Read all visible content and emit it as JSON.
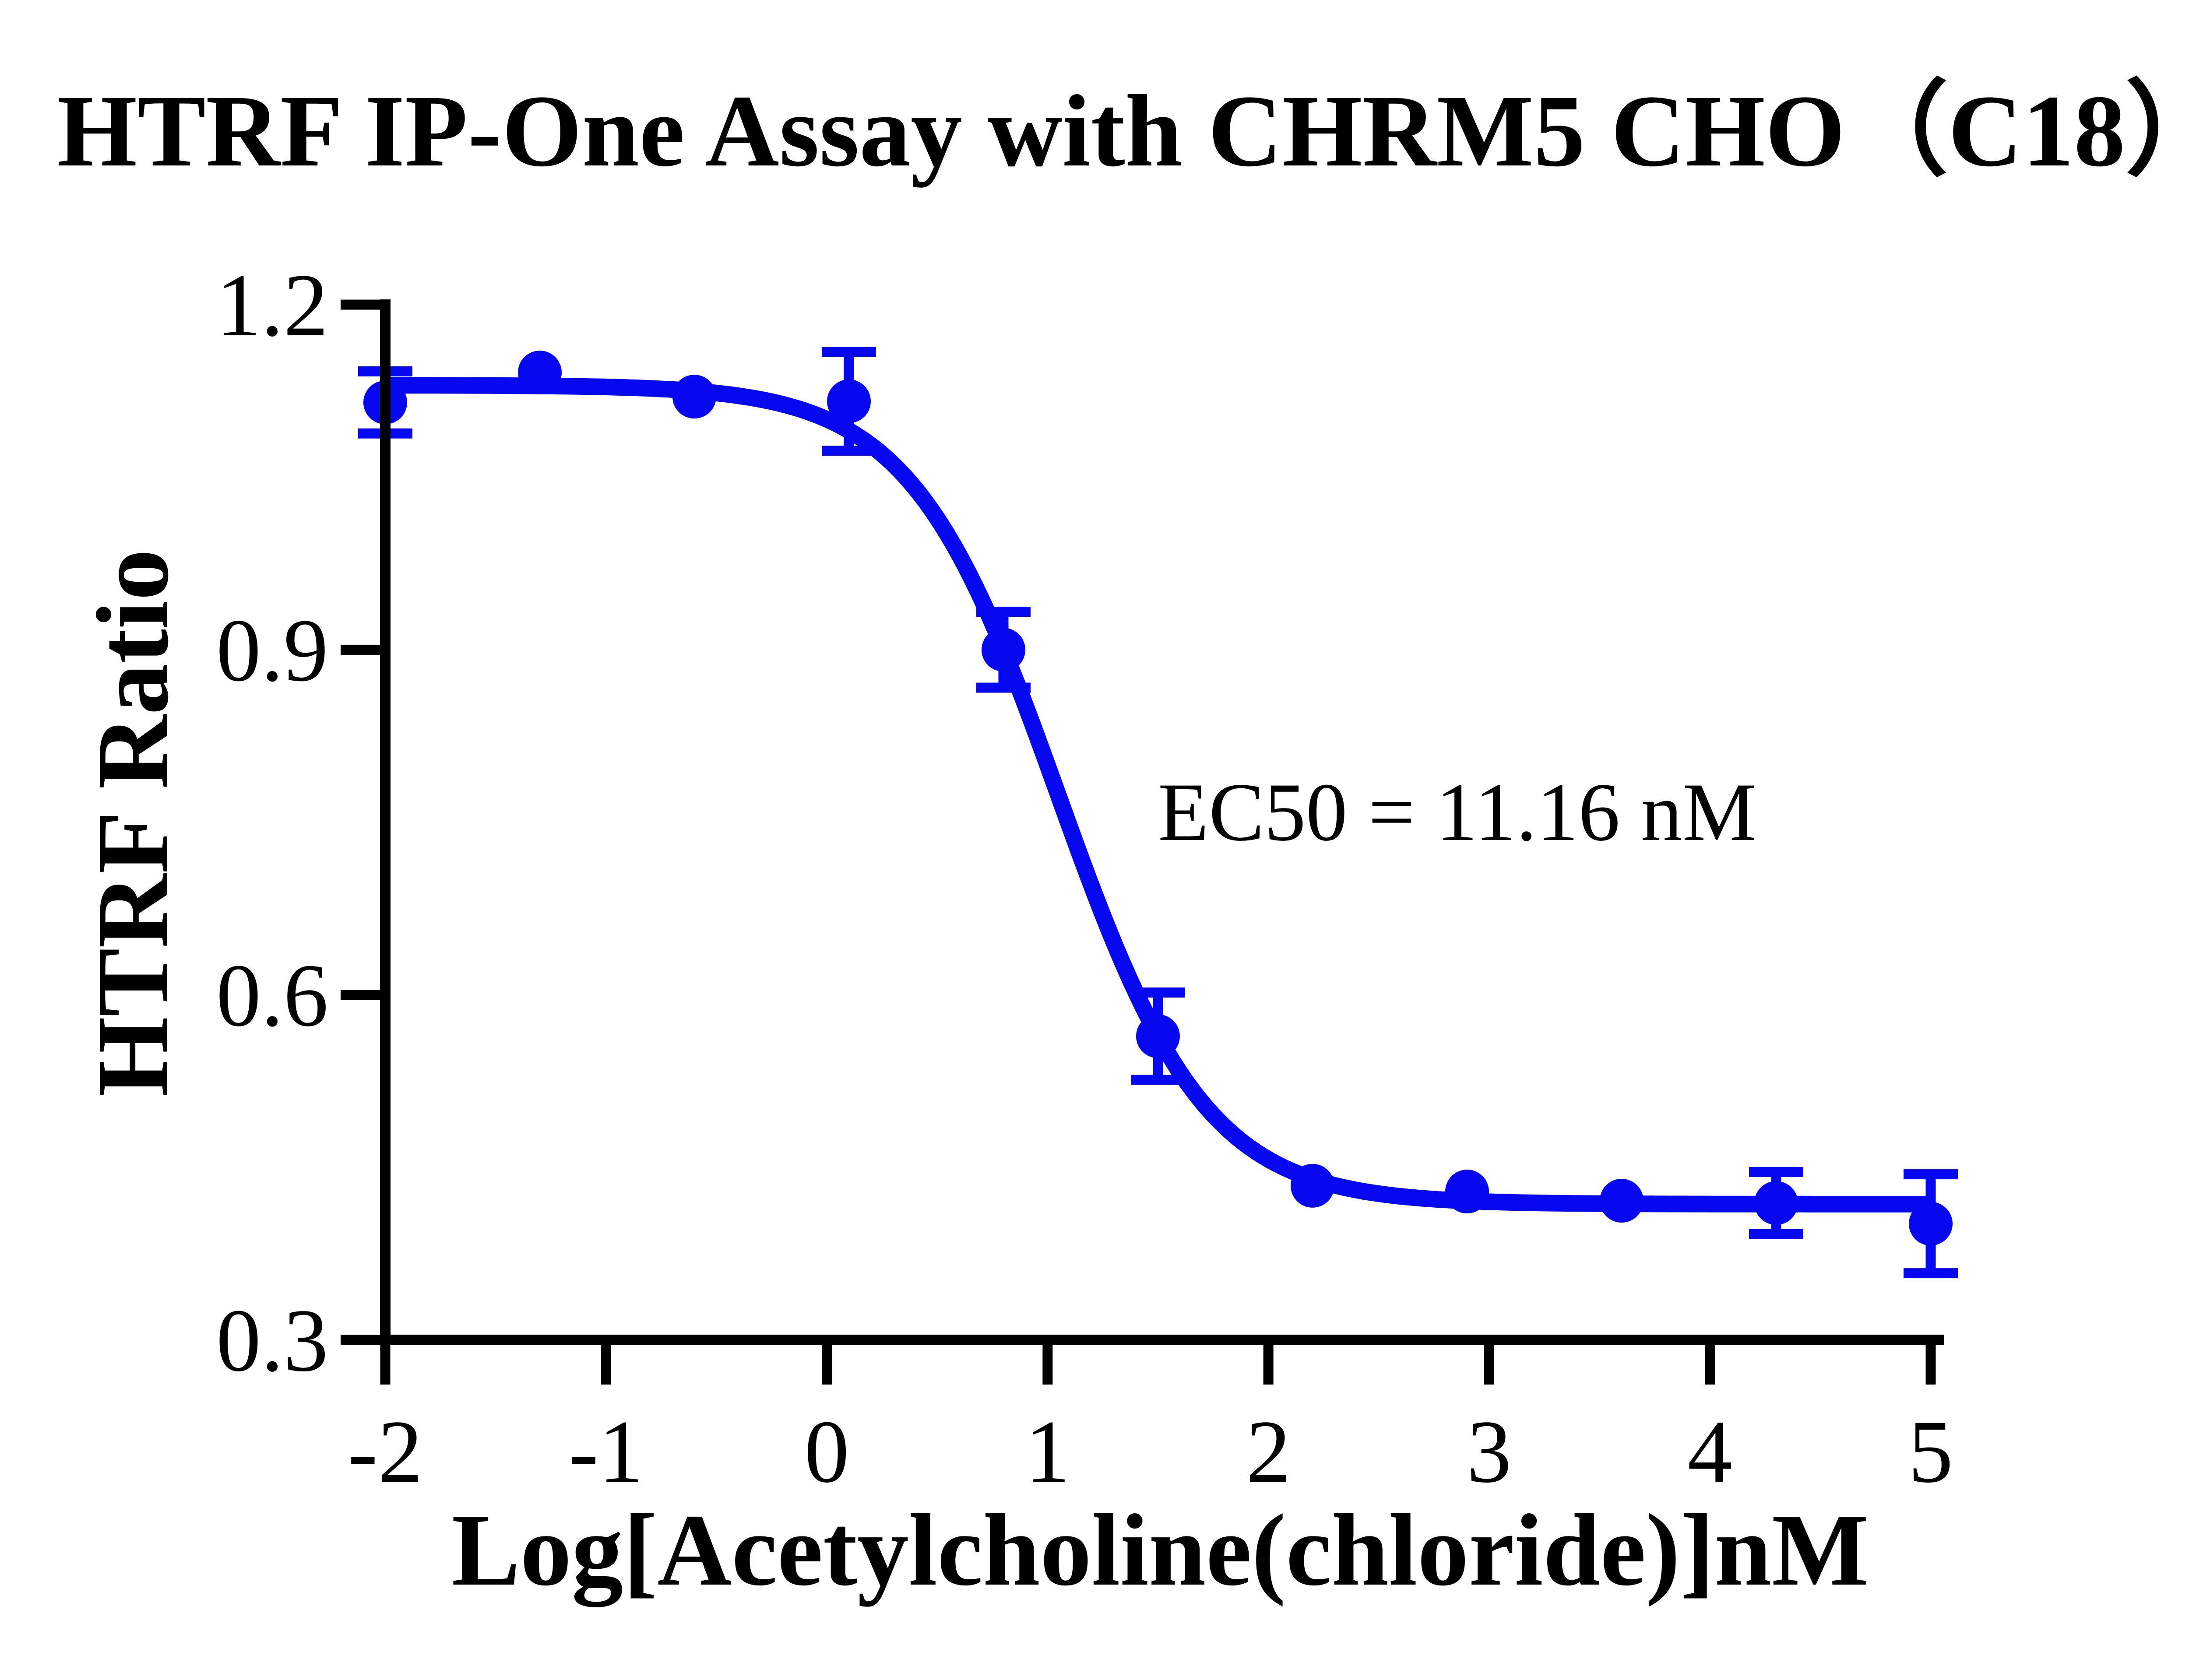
{
  "title": "HTRF IP-One Assay with CHRM5 CHO（C18）",
  "colors": {
    "series": "#0707f0",
    "axis": "#000000",
    "text": "#000000",
    "background": "#ffffff"
  },
  "chart_data": {
    "type": "scatter",
    "subtype": "sigmoidal-dose-response-fit",
    "title": "HTRF IP-One Assay with CHRM5 CHO（C18）",
    "xlabel": "Log[Acetylcholine(chloride)]nM",
    "ylabel": "HTRF Ratio",
    "xlim": [
      -2,
      5
    ],
    "ylim": [
      0.3,
      1.2
    ],
    "x_ticks": [
      -2,
      -1,
      0,
      1,
      2,
      3,
      4,
      5
    ],
    "x_tick_labels": [
      "-2",
      "-1",
      "0",
      "1",
      "2",
      "3",
      "4",
      "5"
    ],
    "y_ticks": [
      0.3,
      0.6,
      0.9,
      1.2
    ],
    "y_tick_labels": [
      "0.3",
      "0.6",
      "0.9",
      "1.2"
    ],
    "grid": false,
    "legend": "none",
    "series": [
      {
        "marker": "circle",
        "error_bars": "vertical-sem",
        "points": [
          {
            "x": -2.0,
            "y": 1.115,
            "err": 0.027
          },
          {
            "x": -1.3,
            "y": 1.141,
            "err": 0
          },
          {
            "x": -0.6,
            "y": 1.12,
            "err": 0
          },
          {
            "x": 0.1,
            "y": 1.116,
            "err": 0.043
          },
          {
            "x": 0.8,
            "y": 0.9,
            "err": 0.033
          },
          {
            "x": 1.5,
            "y": 0.564,
            "err": 0.038
          },
          {
            "x": 2.2,
            "y": 0.434,
            "err": 0
          },
          {
            "x": 2.9,
            "y": 0.429,
            "err": 0
          },
          {
            "x": 3.6,
            "y": 0.421,
            "err": 0
          },
          {
            "x": 4.3,
            "y": 0.419,
            "err": 0.027
          },
          {
            "x": 5.0,
            "y": 0.401,
            "err": 0.043
          }
        ]
      }
    ],
    "fit": {
      "model": "four-parameter logistic",
      "top": 1.13,
      "bottom": 0.418,
      "log_ec50": 1.0477,
      "hill_slope": -1.3
    },
    "annotation": {
      "text": "EC50 = 11.16 nM",
      "ec50_nM": 11.16
    }
  }
}
